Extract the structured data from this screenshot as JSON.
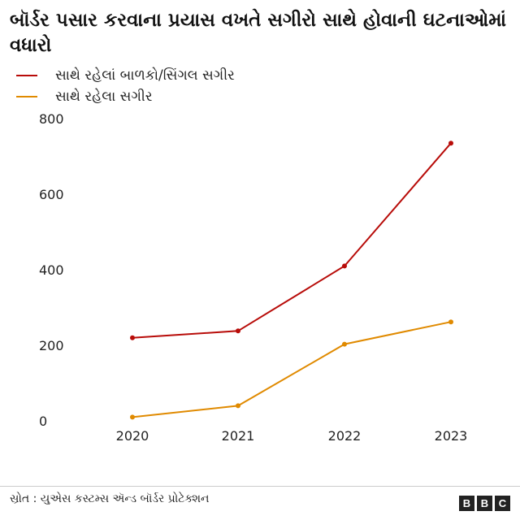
{
  "chart_data": {
    "type": "line",
    "title": "બૉર્ડર પસાર કરવાના પ્રયાસ વખતે સગીરો સાથે હોવાની ઘટનાઓમાં વધારો",
    "x": [
      "2020",
      "2021",
      "2022",
      "2023"
    ],
    "series": [
      {
        "name": "સાથે રહેલાં બાળકો/સિંગલ સગીર",
        "color": "#b80c09",
        "values": [
          220,
          238,
          410,
          735
        ]
      },
      {
        "name": "સાથે રહેલા સગીર",
        "color": "#e08a00",
        "values": [
          10,
          40,
          203,
          262
        ]
      }
    ],
    "ylim": [
      0,
      800
    ],
    "yticks": [
      "0",
      "200",
      "400",
      "600",
      "800"
    ],
    "grid": false,
    "legend_position": "top-left"
  },
  "footer": {
    "source": "સ્રોત : યુએસ કસ્ટમ્સ ઍન્ડ બૉર્ડર પ્રોટેક્શન",
    "logo_letters": [
      "B",
      "B",
      "C"
    ]
  }
}
